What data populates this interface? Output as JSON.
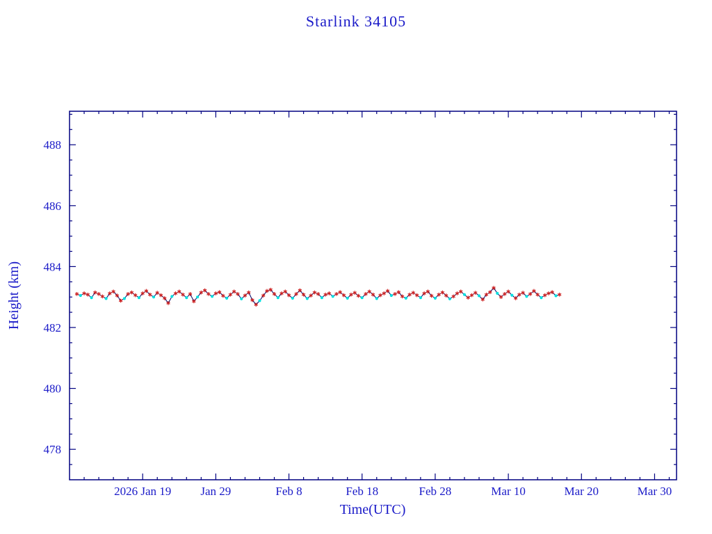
{
  "page": {
    "background": "#ffffff"
  },
  "chart_data": {
    "type": "scatter",
    "title": "Starlink 34105",
    "xlabel": "Time(UTC)",
    "ylabel": "Height (km)",
    "x_unit": "days since 2026-01-09 (UTC)",
    "xlim_days": [
      0,
      83
    ],
    "ylim": [
      477.0,
      489.1
    ],
    "y_major_ticks": [
      478,
      480,
      482,
      484,
      486,
      488
    ],
    "y_minor_step": 0.5,
    "x_minor_step": 2,
    "x_major_ticks": [
      {
        "day": 10,
        "label": "2026 Jan 19"
      },
      {
        "day": 20,
        "label": "Jan 29"
      },
      {
        "day": 30,
        "label": "Feb 8"
      },
      {
        "day": 40,
        "label": "Feb 18"
      },
      {
        "day": 50,
        "label": "Feb 28"
      },
      {
        "day": 60,
        "label": "Mar 10"
      },
      {
        "day": 70,
        "label": "Mar 20"
      },
      {
        "day": 80,
        "label": "Mar 30"
      }
    ],
    "grid": false,
    "legend": "none",
    "axis_color": "#000080",
    "text_color": "#1a1ac8",
    "line_color": "#000060",
    "marker_red": "#cc2020",
    "marker_cyan": "#00e0e0",
    "series_note": "red asterisks and cyan dots connected by navy line, mean height ~483.05 km",
    "points": [
      [
        1.0,
        483.1,
        "r"
      ],
      [
        1.5,
        483.05,
        "c"
      ],
      [
        2.0,
        483.12,
        "r"
      ],
      [
        2.5,
        483.08,
        "r"
      ],
      [
        3.0,
        482.98,
        "c"
      ],
      [
        3.5,
        483.15,
        "r"
      ],
      [
        4.0,
        483.1,
        "r"
      ],
      [
        4.5,
        483.02,
        "r"
      ],
      [
        5.0,
        482.95,
        "c"
      ],
      [
        5.5,
        483.12,
        "r"
      ],
      [
        6.0,
        483.18,
        "r"
      ],
      [
        6.5,
        483.05,
        "r"
      ],
      [
        7.0,
        482.88,
        "r"
      ],
      [
        7.5,
        482.95,
        "c"
      ],
      [
        8.0,
        483.1,
        "r"
      ],
      [
        8.5,
        483.15,
        "r"
      ],
      [
        9.0,
        483.06,
        "r"
      ],
      [
        9.5,
        482.98,
        "c"
      ],
      [
        10.0,
        483.12,
        "r"
      ],
      [
        10.5,
        483.2,
        "r"
      ],
      [
        11.0,
        483.08,
        "r"
      ],
      [
        11.5,
        483.0,
        "c"
      ],
      [
        12.0,
        483.14,
        "r"
      ],
      [
        12.5,
        483.06,
        "r"
      ],
      [
        13.0,
        482.96,
        "r"
      ],
      [
        13.5,
        482.8,
        "r"
      ],
      [
        14.0,
        483.02,
        "c"
      ],
      [
        14.5,
        483.12,
        "r"
      ],
      [
        15.0,
        483.18,
        "r"
      ],
      [
        15.5,
        483.08,
        "r"
      ],
      [
        16.0,
        482.98,
        "c"
      ],
      [
        16.5,
        483.1,
        "r"
      ],
      [
        17.0,
        482.86,
        "r"
      ],
      [
        17.5,
        483.0,
        "c"
      ],
      [
        18.0,
        483.15,
        "r"
      ],
      [
        18.5,
        483.22,
        "r"
      ],
      [
        19.0,
        483.1,
        "r"
      ],
      [
        19.5,
        483.02,
        "c"
      ],
      [
        20.0,
        483.12,
        "r"
      ],
      [
        20.5,
        483.16,
        "r"
      ],
      [
        21.0,
        483.04,
        "r"
      ],
      [
        21.5,
        482.96,
        "c"
      ],
      [
        22.0,
        483.08,
        "r"
      ],
      [
        22.5,
        483.18,
        "r"
      ],
      [
        23.0,
        483.1,
        "r"
      ],
      [
        23.5,
        482.94,
        "c"
      ],
      [
        24.0,
        483.05,
        "r"
      ],
      [
        24.5,
        483.15,
        "r"
      ],
      [
        25.0,
        482.9,
        "r"
      ],
      [
        25.5,
        482.75,
        "r"
      ],
      [
        26.0,
        482.88,
        "c"
      ],
      [
        26.5,
        483.05,
        "r"
      ],
      [
        27.0,
        483.2,
        "r"
      ],
      [
        27.5,
        483.24,
        "r"
      ],
      [
        28.0,
        483.1,
        "r"
      ],
      [
        28.5,
        482.98,
        "c"
      ],
      [
        29.0,
        483.12,
        "r"
      ],
      [
        29.5,
        483.18,
        "r"
      ],
      [
        30.0,
        483.06,
        "r"
      ],
      [
        30.5,
        482.96,
        "c"
      ],
      [
        31.0,
        483.1,
        "r"
      ],
      [
        31.5,
        483.22,
        "r"
      ],
      [
        32.0,
        483.08,
        "r"
      ],
      [
        32.5,
        482.95,
        "c"
      ],
      [
        33.0,
        483.05,
        "r"
      ],
      [
        33.5,
        483.15,
        "r"
      ],
      [
        34.0,
        483.1,
        "r"
      ],
      [
        34.5,
        482.98,
        "c"
      ],
      [
        35.0,
        483.08,
        "r"
      ],
      [
        35.5,
        483.12,
        "r"
      ],
      [
        36.0,
        483.02,
        "c"
      ],
      [
        36.5,
        483.1,
        "r"
      ],
      [
        37.0,
        483.16,
        "r"
      ],
      [
        37.5,
        483.06,
        "r"
      ],
      [
        38.0,
        482.96,
        "c"
      ],
      [
        38.5,
        483.08,
        "r"
      ],
      [
        39.0,
        483.14,
        "r"
      ],
      [
        39.5,
        483.04,
        "r"
      ],
      [
        40.0,
        482.98,
        "c"
      ],
      [
        40.5,
        483.1,
        "r"
      ],
      [
        41.0,
        483.18,
        "r"
      ],
      [
        41.5,
        483.08,
        "r"
      ],
      [
        42.0,
        482.95,
        "c"
      ],
      [
        42.5,
        483.06,
        "r"
      ],
      [
        43.0,
        483.12,
        "r"
      ],
      [
        43.5,
        483.2,
        "r"
      ],
      [
        44.0,
        483.05,
        "c"
      ],
      [
        44.5,
        483.1,
        "r"
      ],
      [
        45.0,
        483.16,
        "r"
      ],
      [
        45.5,
        483.02,
        "r"
      ],
      [
        46.0,
        482.96,
        "c"
      ],
      [
        46.5,
        483.08,
        "r"
      ],
      [
        47.0,
        483.14,
        "r"
      ],
      [
        47.5,
        483.06,
        "r"
      ],
      [
        48.0,
        482.98,
        "c"
      ],
      [
        48.5,
        483.12,
        "r"
      ],
      [
        49.0,
        483.18,
        "r"
      ],
      [
        49.5,
        483.04,
        "r"
      ],
      [
        50.0,
        482.96,
        "c"
      ],
      [
        50.5,
        483.08,
        "r"
      ],
      [
        51.0,
        483.15,
        "r"
      ],
      [
        51.5,
        483.05,
        "r"
      ],
      [
        52.0,
        482.94,
        "c"
      ],
      [
        52.5,
        483.02,
        "r"
      ],
      [
        53.0,
        483.12,
        "r"
      ],
      [
        53.5,
        483.18,
        "r"
      ],
      [
        54.0,
        483.08,
        "c"
      ],
      [
        54.5,
        482.98,
        "r"
      ],
      [
        55.0,
        483.06,
        "r"
      ],
      [
        55.5,
        483.14,
        "r"
      ],
      [
        56.0,
        483.04,
        "c"
      ],
      [
        56.5,
        482.92,
        "r"
      ],
      [
        57.0,
        483.08,
        "r"
      ],
      [
        57.5,
        483.16,
        "r"
      ],
      [
        58.0,
        483.3,
        "r"
      ],
      [
        58.5,
        483.12,
        "c"
      ],
      [
        59.0,
        483.0,
        "r"
      ],
      [
        59.5,
        483.1,
        "r"
      ],
      [
        60.0,
        483.18,
        "r"
      ],
      [
        60.5,
        483.06,
        "c"
      ],
      [
        61.0,
        482.96,
        "r"
      ],
      [
        61.5,
        483.08,
        "r"
      ],
      [
        62.0,
        483.14,
        "r"
      ],
      [
        62.5,
        483.02,
        "c"
      ],
      [
        63.0,
        483.1,
        "r"
      ],
      [
        63.5,
        483.2,
        "r"
      ],
      [
        64.0,
        483.08,
        "r"
      ],
      [
        64.5,
        482.98,
        "c"
      ],
      [
        65.0,
        483.06,
        "r"
      ],
      [
        65.5,
        483.12,
        "r"
      ],
      [
        66.0,
        483.16,
        "r"
      ],
      [
        66.5,
        483.04,
        "c"
      ],
      [
        67.0,
        483.08,
        "r"
      ]
    ]
  }
}
